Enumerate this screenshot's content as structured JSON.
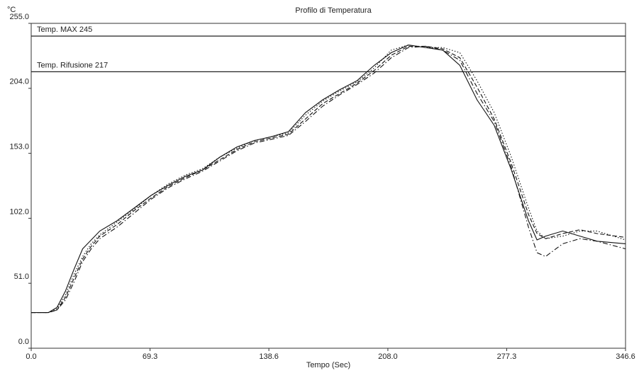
{
  "chart_data": {
    "type": "line",
    "title": "Profilo di Temperatura",
    "y_unit": "°C",
    "x_label": "Tempo (Sec)",
    "x": [
      0,
      10,
      15,
      20,
      25,
      30,
      35,
      40,
      50,
      60,
      70,
      80,
      90,
      100,
      110,
      120,
      130,
      140,
      150,
      160,
      170,
      180,
      190,
      200,
      210,
      220,
      230,
      240,
      250,
      260,
      270,
      280,
      290,
      295,
      300,
      310,
      320,
      330,
      346.6
    ],
    "series": [
      {
        "color": "#111",
        "style": "solid",
        "values": [
          28,
          28,
          32,
          45,
          62,
          78,
          85,
          92,
          100,
          110,
          120,
          128,
          135,
          140,
          150,
          158,
          163,
          166,
          170,
          185,
          195,
          203,
          210,
          222,
          232,
          238,
          236,
          234,
          222,
          195,
          175,
          140,
          100,
          85,
          88,
          92,
          88,
          84,
          82
        ]
      },
      {
        "color": "#111",
        "style": "dashed",
        "values": [
          28,
          28,
          30,
          40,
          55,
          70,
          80,
          88,
          97,
          108,
          118,
          127,
          134,
          140,
          148,
          156,
          162,
          165,
          168,
          180,
          192,
          200,
          208,
          218,
          230,
          237,
          237,
          235,
          228,
          205,
          180,
          145,
          105,
          90,
          86,
          90,
          93,
          90,
          87
        ]
      },
      {
        "color": "#111",
        "style": "dotted",
        "values": [
          28,
          28,
          31,
          42,
          58,
          72,
          82,
          89,
          99,
          109,
          120,
          129,
          136,
          141,
          150,
          157,
          163,
          166,
          169,
          183,
          194,
          202,
          209,
          220,
          234,
          238,
          236,
          236,
          232,
          210,
          185,
          150,
          110,
          92,
          86,
          88,
          92,
          92,
          85
        ]
      },
      {
        "color": "#111",
        "style": "dashdot",
        "values": [
          28,
          28,
          30,
          38,
          52,
          68,
          78,
          86,
          95,
          106,
          117,
          126,
          133,
          139,
          147,
          155,
          161,
          164,
          167,
          178,
          190,
          199,
          207,
          216,
          228,
          236,
          237,
          234,
          226,
          200,
          178,
          142,
          95,
          75,
          72,
          82,
          86,
          84,
          78
        ]
      }
    ],
    "reference_lines": [
      {
        "label": "Temp. MAX 245",
        "value": 245
      },
      {
        "label": "Temp. Rifusione 217",
        "value": 217
      }
    ],
    "xlim": [
      0,
      346.6
    ],
    "ylim": [
      0,
      255
    ],
    "xticks": [
      {
        "value": 0,
        "label": "0.0"
      },
      69.3,
      138.6,
      {
        "value": 208,
        "label": "208.0"
      },
      277.3,
      346.6
    ],
    "yticks": [
      {
        "value": 0,
        "label": "0.0"
      },
      {
        "value": 51,
        "label": "51.0"
      },
      {
        "value": 102,
        "label": "102.0"
      },
      {
        "value": 153,
        "label": "153.0"
      },
      {
        "value": 204,
        "label": "204.0"
      },
      {
        "value": 255,
        "label": "255.0"
      }
    ],
    "grid": false
  }
}
